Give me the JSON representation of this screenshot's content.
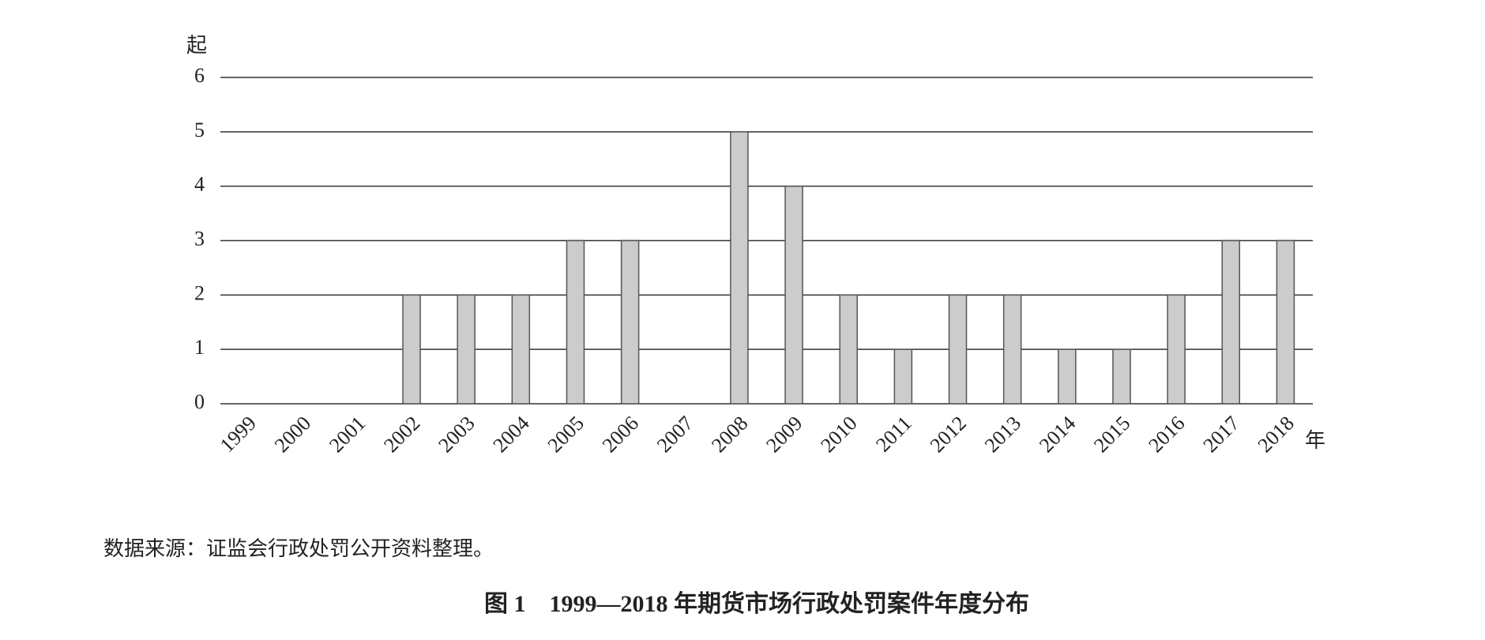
{
  "chart_data": {
    "type": "bar",
    "y_label": "起",
    "x_label": "年",
    "categories": [
      "1999",
      "2000",
      "2001",
      "2002",
      "2003",
      "2004",
      "2005",
      "2006",
      "2007",
      "2008",
      "2009",
      "2010",
      "2011",
      "2012",
      "2013",
      "2014",
      "2015",
      "2016",
      "2017",
      "2018"
    ],
    "values": [
      0,
      0,
      0,
      2,
      2,
      2,
      3,
      3,
      0,
      5,
      4,
      2,
      1,
      2,
      2,
      1,
      1,
      2,
      3,
      3
    ],
    "color": "#cccccc",
    "ylim": [
      0,
      6
    ],
    "yticks": [
      0,
      1,
      2,
      3,
      4,
      5,
      6
    ],
    "grid": true,
    "source": "数据来源：证监会行政处罚公开资料整理。",
    "caption": "图 1　1999—2018 年期货市场行政处罚案件年度分布"
  }
}
